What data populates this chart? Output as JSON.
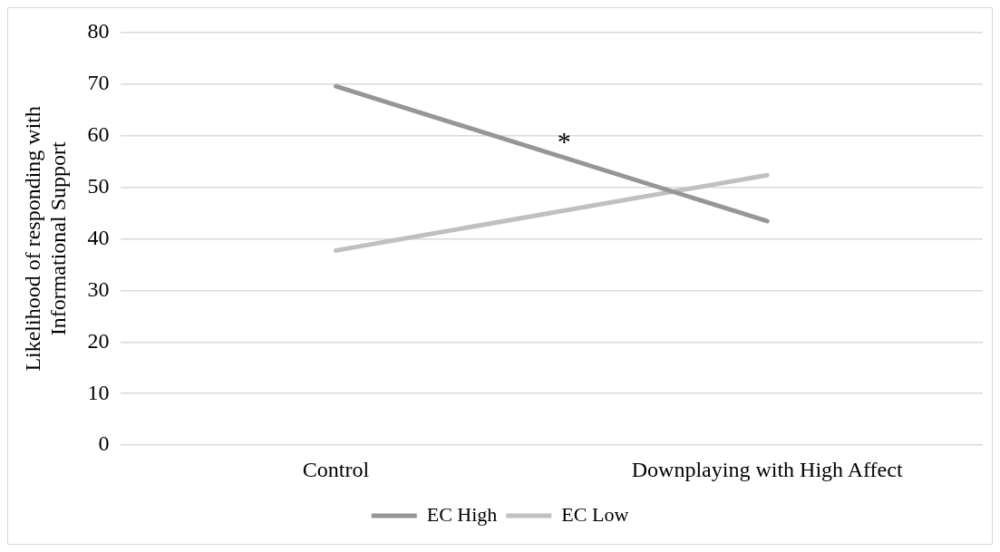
{
  "chart_data": {
    "type": "line",
    "ylabel": "Likelihood of responding with Informational Support",
    "categories": [
      "Control",
      "Downplaying with High Affect"
    ],
    "series": [
      {
        "name": "EC High",
        "color": "#969696",
        "values": [
          69.5,
          43.4
        ]
      },
      {
        "name": "EC Low",
        "color": "#c0c0c0",
        "values": [
          37.7,
          52.3
        ]
      }
    ],
    "ylim": [
      0,
      80
    ],
    "yticks": [
      0,
      10,
      20,
      30,
      40,
      50,
      60,
      70,
      80
    ],
    "grid": "y",
    "legend": "bottom",
    "marker": "none",
    "line_style": "solid",
    "annotations": [
      "*"
    ]
  }
}
